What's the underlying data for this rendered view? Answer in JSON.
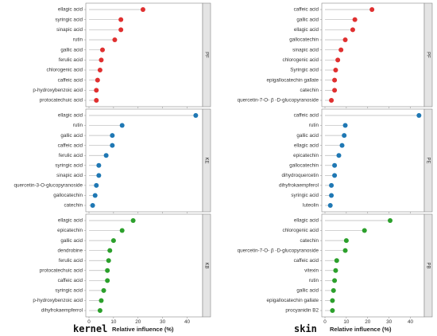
{
  "figure": {
    "left_group_label": "kernel",
    "right_group_label": "skin",
    "xlabel": "Relative influence (%)"
  },
  "chart_data": [
    {
      "type": "scatter",
      "panel": "kernel",
      "strip": "PF",
      "color": "#e03030",
      "categories": [
        "ellagic acid",
        "syringic acid",
        "sinapic acid",
        "rutin",
        "gallic acid",
        "ferulic acid",
        "chlorogenic acid",
        "caffeic acid",
        "p-hydroxybenzoic acid",
        "protocatechuic acid"
      ],
      "values": [
        22,
        13,
        13,
        10.5,
        5.5,
        5,
        4.5,
        3.5,
        3,
        3
      ],
      "xlim": [
        0,
        45
      ],
      "xticks": [
        0,
        10,
        20,
        30,
        40
      ],
      "xtick_labels_visible": false
    },
    {
      "type": "scatter",
      "panel": "kernel",
      "strip": "KE",
      "color": "#1f78b4",
      "categories": [
        "ellagic acid",
        "rutin",
        "gallic acid",
        "caffeic acid",
        "ferulic acid",
        "syringic acid",
        "sinapic acid",
        "quercetin-3-O-glucopyranoside",
        "gallocatechin",
        "catechin"
      ],
      "values": [
        43.5,
        13.5,
        9.5,
        9.5,
        7,
        4,
        4,
        3,
        2.5,
        1.5
      ],
      "xlim": [
        0,
        45
      ],
      "xticks": [
        0,
        10,
        20,
        30,
        40
      ],
      "xtick_labels_visible": false
    },
    {
      "type": "scatter",
      "panel": "kernel",
      "strip": "KB",
      "color": "#2ca02c",
      "categories": [
        "ellagic acid",
        "epicatechin",
        "gallic acid",
        "dendrobine",
        "ferulic acid",
        "protocatechuic acid",
        "caffeic acid",
        "syringic acid",
        "p-hydroxybenzoic acid",
        "dihyfrokaempferrol"
      ],
      "values": [
        18,
        13.5,
        10,
        8.5,
        8,
        7.5,
        7.5,
        6,
        5,
        4.5
      ],
      "xlim": [
        0,
        45
      ],
      "xticks": [
        0,
        10,
        20,
        30,
        40
      ],
      "xtick_labels_visible": true
    },
    {
      "type": "scatter",
      "panel": "skin",
      "strip": "PF",
      "color": "#e03030",
      "categories": [
        "caffeic acid",
        "gallic acid",
        "ellagic acid",
        "gallocatechin",
        "sinapic acid",
        "chlorogenic acid",
        "Syringic acid",
        "epigallocatechin gallate",
        "catechin",
        "quercetin-7-O- β -D-glucopyranoside"
      ],
      "values": [
        22,
        14,
        13,
        9.5,
        7.5,
        6,
        5,
        4.5,
        4.5,
        3
      ],
      "xlim": [
        0,
        45
      ],
      "xticks": [
        0,
        10,
        20,
        30,
        40
      ],
      "xtick_labels_visible": false
    },
    {
      "type": "scatter",
      "panel": "skin",
      "strip": "PE",
      "color": "#1f78b4",
      "categories": [
        "caffeic acid",
        "rutin",
        "gallic acid",
        "ellagic acid",
        "epicatechin",
        "gallocatechin",
        "dihydroquercetin",
        "dihyfrokaempferol",
        "syringic acid",
        "luteolin"
      ],
      "values": [
        44,
        9.5,
        9,
        8,
        6.5,
        4.5,
        4.5,
        3,
        3,
        2.5
      ],
      "xlim": [
        0,
        45
      ],
      "xticks": [
        0,
        10,
        20,
        30,
        40
      ],
      "xtick_labels_visible": false
    },
    {
      "type": "scatter",
      "panel": "skin",
      "strip": "PB",
      "color": "#2ca02c",
      "categories": [
        "ellagic acid",
        "chlorogenic acid",
        "catechin",
        "quercetin-7-O- β -D-glucopyranoside",
        "caffeic acid",
        "vitexin",
        "rutin",
        "gallic acid",
        "epigallocatechin gallate",
        "procyanidin B2"
      ],
      "values": [
        30.5,
        18.5,
        10,
        9.5,
        5.5,
        5,
        4.5,
        4,
        3.5,
        3.5
      ],
      "xlim": [
        0,
        45
      ],
      "xticks": [
        0,
        10,
        20,
        30,
        40
      ],
      "xtick_labels_visible": true
    }
  ]
}
